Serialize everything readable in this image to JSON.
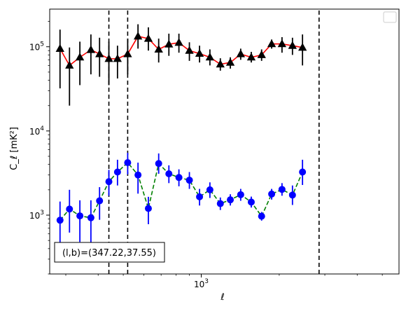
{
  "chart_data": {
    "type": "scatter",
    "title": "",
    "xlabel": "ℓ",
    "ylabel": "C_ℓ [mK²]",
    "xscale": "log",
    "yscale": "log",
    "xlim": [
      260,
      5800
    ],
    "ylim": [
      200,
      280000
    ],
    "x_ticks": [
      {
        "value": 1000,
        "label": "10",
        "exp": "3"
      }
    ],
    "y_ticks": [
      {
        "value": 1000,
        "label": "10",
        "exp": "3"
      },
      {
        "value": 10000,
        "label": "10",
        "exp": "4"
      },
      {
        "value": 100000,
        "label": "10",
        "exp": "5"
      }
    ],
    "grid": false,
    "legend": {
      "position": "top-right",
      "entries": []
    },
    "vertical_lines": [
      440,
      520,
      2850
    ],
    "annotation": {
      "text": "(l,b)=(347.22,37.55)",
      "position": "bottom-left"
    },
    "series": [
      {
        "marker": "triangle",
        "color": "#000000",
        "line_color": "#ff0000",
        "line_style": "solid",
        "points": [
          {
            "x": 285,
            "y": 95000,
            "lo": 32000,
            "hi": 160000
          },
          {
            "x": 310,
            "y": 60000,
            "lo": 20000,
            "hi": 98000
          },
          {
            "x": 340,
            "y": 75000,
            "lo": 35000,
            "hi": 115000
          },
          {
            "x": 375,
            "y": 92000,
            "lo": 47000,
            "hi": 140000
          },
          {
            "x": 405,
            "y": 82000,
            "lo": 44000,
            "hi": 128000
          },
          {
            "x": 440,
            "y": 72000,
            "lo": 35000,
            "hi": 115000
          },
          {
            "x": 475,
            "y": 72000,
            "lo": 42000,
            "hi": 103000
          },
          {
            "x": 520,
            "y": 82000,
            "lo": 47000,
            "hi": 125000
          },
          {
            "x": 570,
            "y": 133000,
            "lo": 95000,
            "hi": 185000
          },
          {
            "x": 625,
            "y": 125000,
            "lo": 90000,
            "hi": 170000
          },
          {
            "x": 685,
            "y": 93000,
            "lo": 65000,
            "hi": 125000
          },
          {
            "x": 750,
            "y": 107000,
            "lo": 78000,
            "hi": 143000
          },
          {
            "x": 820,
            "y": 112000,
            "lo": 85000,
            "hi": 143000
          },
          {
            "x": 900,
            "y": 90000,
            "lo": 68000,
            "hi": 113000
          },
          {
            "x": 985,
            "y": 83000,
            "lo": 65000,
            "hi": 103000
          },
          {
            "x": 1080,
            "y": 75000,
            "lo": 60000,
            "hi": 93000
          },
          {
            "x": 1185,
            "y": 62000,
            "lo": 52000,
            "hi": 73000
          },
          {
            "x": 1295,
            "y": 65000,
            "lo": 55000,
            "hi": 75000
          },
          {
            "x": 1420,
            "y": 82000,
            "lo": 70000,
            "hi": 95000
          },
          {
            "x": 1560,
            "y": 75000,
            "lo": 65000,
            "hi": 87000
          },
          {
            "x": 1710,
            "y": 80000,
            "lo": 68000,
            "hi": 93000
          },
          {
            "x": 1870,
            "y": 108000,
            "lo": 95000,
            "hi": 122000
          },
          {
            "x": 2050,
            "y": 108000,
            "lo": 85000,
            "hi": 130000
          },
          {
            "x": 2250,
            "y": 103000,
            "lo": 80000,
            "hi": 128000
          },
          {
            "x": 2460,
            "y": 98000,
            "lo": 60000,
            "hi": 140000
          }
        ]
      },
      {
        "marker": "circle",
        "color": "#0000ff",
        "line_color": "#008000",
        "line_style": "dashed",
        "points": [
          {
            "x": 285,
            "y": 870,
            "lo": 430,
            "hi": 1450
          },
          {
            "x": 310,
            "y": 1180,
            "lo": 620,
            "hi": 2000
          },
          {
            "x": 340,
            "y": 980,
            "lo": 480,
            "hi": 1500
          },
          {
            "x": 375,
            "y": 930,
            "lo": 460,
            "hi": 1500
          },
          {
            "x": 405,
            "y": 1480,
            "lo": 880,
            "hi": 2150
          },
          {
            "x": 440,
            "y": 2500,
            "lo": 1700,
            "hi": 3450
          },
          {
            "x": 475,
            "y": 3250,
            "lo": 2250,
            "hi": 4550
          },
          {
            "x": 520,
            "y": 4200,
            "lo": 3050,
            "hi": 5500
          },
          {
            "x": 570,
            "y": 3000,
            "lo": 1800,
            "hi": 4200
          },
          {
            "x": 625,
            "y": 1200,
            "lo": 780,
            "hi": 1650
          },
          {
            "x": 685,
            "y": 4100,
            "lo": 3100,
            "hi": 5400
          },
          {
            "x": 750,
            "y": 3100,
            "lo": 2400,
            "hi": 3900
          },
          {
            "x": 820,
            "y": 2800,
            "lo": 2200,
            "hi": 3500
          },
          {
            "x": 900,
            "y": 2600,
            "lo": 2050,
            "hi": 3250
          },
          {
            "x": 985,
            "y": 1650,
            "lo": 1300,
            "hi": 2050
          },
          {
            "x": 1080,
            "y": 2000,
            "lo": 1600,
            "hi": 2450
          },
          {
            "x": 1185,
            "y": 1370,
            "lo": 1150,
            "hi": 1620
          },
          {
            "x": 1295,
            "y": 1520,
            "lo": 1300,
            "hi": 1770
          },
          {
            "x": 1420,
            "y": 1750,
            "lo": 1480,
            "hi": 2050
          },
          {
            "x": 1560,
            "y": 1430,
            "lo": 1230,
            "hi": 1660
          },
          {
            "x": 1710,
            "y": 970,
            "lo": 860,
            "hi": 1090
          },
          {
            "x": 1870,
            "y": 1780,
            "lo": 1530,
            "hi": 2050
          },
          {
            "x": 2050,
            "y": 2020,
            "lo": 1700,
            "hi": 2400
          },
          {
            "x": 2250,
            "y": 1730,
            "lo": 1320,
            "hi": 2250
          },
          {
            "x": 2460,
            "y": 3250,
            "lo": 2280,
            "hi": 4550
          }
        ]
      }
    ]
  }
}
